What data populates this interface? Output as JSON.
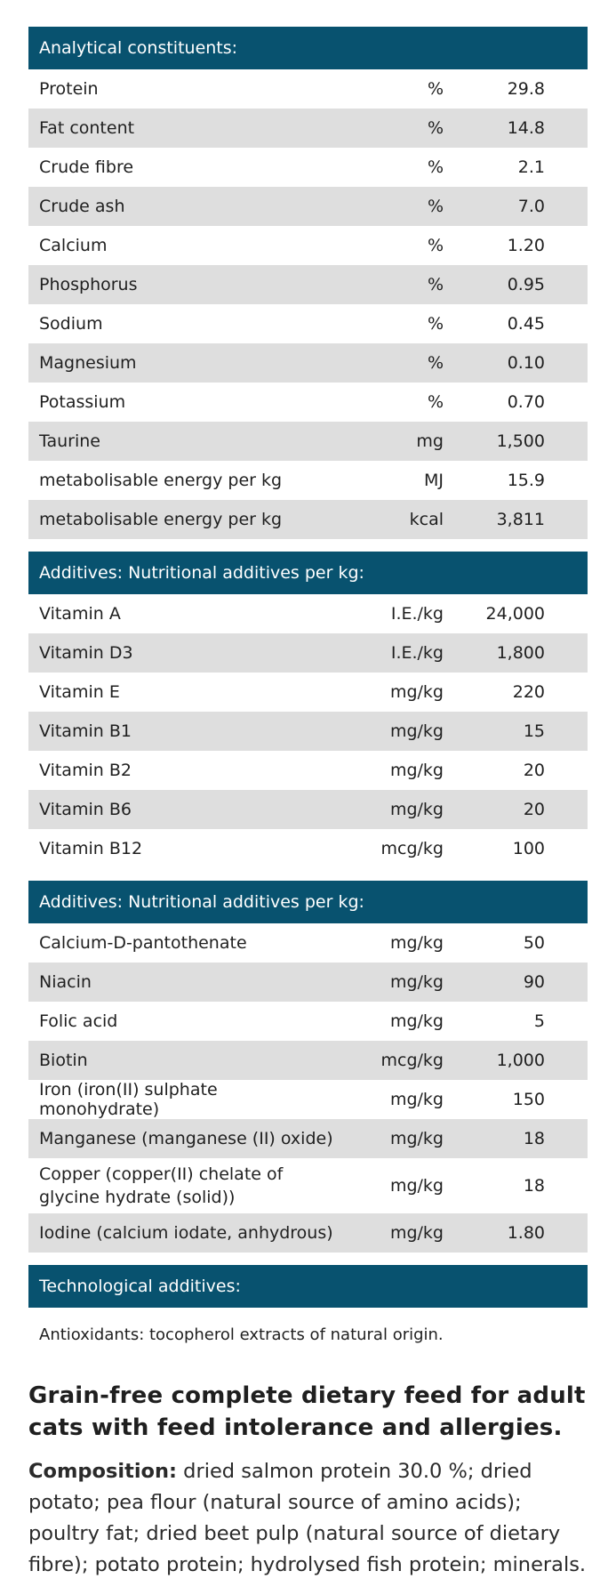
{
  "sections": [
    {
      "title": "Analytical constituents:",
      "rows": [
        {
          "name": "Protein",
          "unit": "%",
          "value": "29.8"
        },
        {
          "name": "Fat content",
          "unit": "%",
          "value": "14.8"
        },
        {
          "name": "Crude fibre",
          "unit": "%",
          "value": "2.1"
        },
        {
          "name": "Crude ash",
          "unit": "%",
          "value": "7.0"
        },
        {
          "name": "Calcium",
          "unit": "%",
          "value": "1.20"
        },
        {
          "name": "Phosphorus",
          "unit": "%",
          "value": "0.95"
        },
        {
          "name": "Sodium",
          "unit": "%",
          "value": "0.45"
        },
        {
          "name": "Magnesium",
          "unit": "%",
          "value": "0.10"
        },
        {
          "name": "Potassium",
          "unit": "%",
          "value": "0.70"
        },
        {
          "name": "Taurine",
          "unit": "mg",
          "value": "1,500"
        },
        {
          "name": "metabolisable energy per kg",
          "unit": "MJ",
          "value": "15.9"
        },
        {
          "name": "metabolisable energy per kg",
          "unit": "kcal",
          "value": "3,811"
        }
      ]
    },
    {
      "title": "Additives: Nutritional additives per kg:",
      "rows": [
        {
          "name": "Vitamin A",
          "unit": "I.E./kg",
          "value": "24,000"
        },
        {
          "name": "Vitamin D3",
          "unit": "I.E./kg",
          "value": "1,800"
        },
        {
          "name": "Vitamin E",
          "unit": "mg/kg",
          "value": "220"
        },
        {
          "name": "Vitamin B1",
          "unit": "mg/kg",
          "value": "15"
        },
        {
          "name": "Vitamin B2",
          "unit": "mg/kg",
          "value": "20"
        },
        {
          "name": "Vitamin B6",
          "unit": "mg/kg",
          "value": "20"
        },
        {
          "name": "Vitamin B12",
          "unit": "mcg/kg",
          "value": "100"
        }
      ]
    },
    {
      "title": "Additives: Nutritional additives per kg:",
      "rows": [
        {
          "name": "Calcium-D-pantothenate",
          "unit": "mg/kg",
          "value": "50"
        },
        {
          "name": "Niacin",
          "unit": "mg/kg",
          "value": "90"
        },
        {
          "name": "Folic acid",
          "unit": "mg/kg",
          "value": "5"
        },
        {
          "name": "Biotin",
          "unit": "mcg/kg",
          "value": "1,000"
        },
        {
          "name": "Iron (iron(II) sulphate monohydrate)",
          "unit": "mg/kg",
          "value": "150"
        },
        {
          "name": "Manganese (manganese (II) oxide)",
          "unit": "mg/kg",
          "value": "18"
        },
        {
          "name": "Copper (copper(II) chelate of glycine hydrate (solid))",
          "unit": "mg/kg",
          "value": "18"
        },
        {
          "name": "Iodine (calcium iodate, anhydrous)",
          "unit": "mg/kg",
          "value": "1.80"
        }
      ]
    }
  ],
  "technological": {
    "title": "Technological additives:",
    "text": "Antioxidants: tocopherol extracts of natural origin."
  },
  "product": {
    "title": "Grain-free complete dietary feed for adult cats with feed intolerance and allergies.",
    "composition_label": "Composition:",
    "composition_text": " dried salmon protein 30.0 %; dried potato; pea flour (natural source of amino acids); poultry fat; dried beet pulp (natural source of dietary fibre); potato protein; hydrolysed fish protein; minerals."
  },
  "colors": {
    "header_bg": "#08526f",
    "stripe_bg": "#dedede"
  }
}
